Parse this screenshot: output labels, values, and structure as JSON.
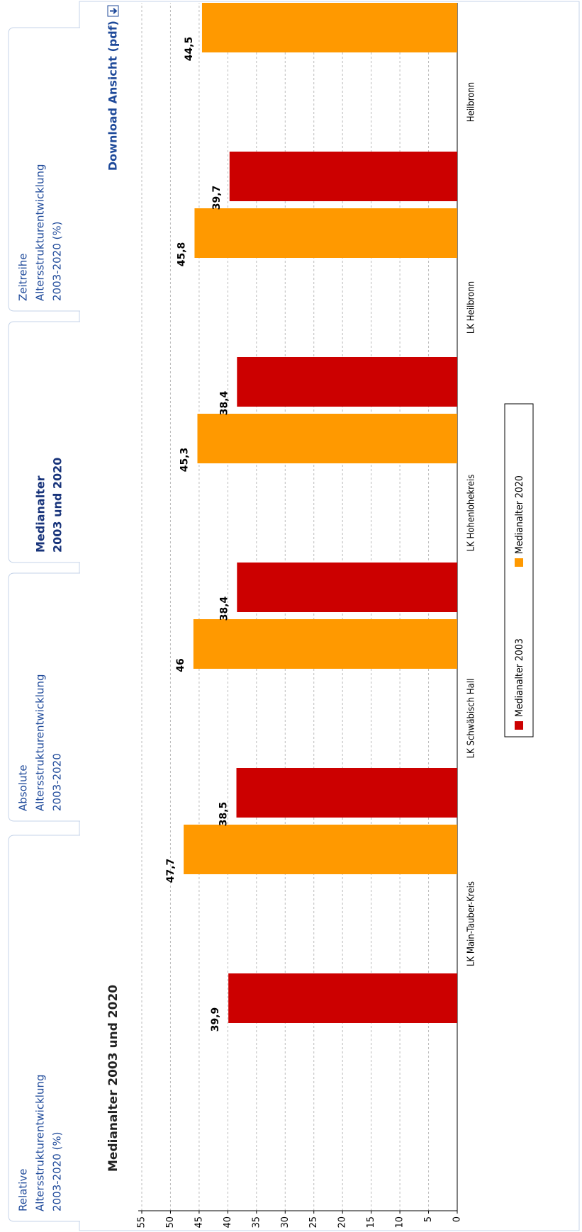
{
  "tabs": [
    [
      "Relative",
      "Altersstrukturentwicklung",
      "2003-2020 (%)"
    ],
    [
      "Absolute",
      "Altersstrukturentwicklung",
      "2003-2020"
    ],
    [
      "Medianalter",
      "2003 und 2020"
    ],
    [
      "Zeitreihe",
      "Altersstrukturentwicklung",
      "2003-2020 (%)"
    ]
  ],
  "download": "Download Ansicht (pdf)",
  "chart_data": {
    "type": "bar",
    "title": "Medianalter 2003 und 2020",
    "categories": [
      "LK Main-Tauber-Kreis",
      "LK Schwäbisch Hall",
      "LK Hohenlohekreis",
      "LK Heilbronn",
      "Heilbronn"
    ],
    "series": [
      {
        "name": "Medianalter 2003",
        "color": "#cc0000",
        "values": [
          39.9,
          38.5,
          38.4,
          38.4,
          39.7
        ],
        "value_labels": [
          "39,9",
          "38,5",
          "38,4",
          "38,4",
          "39,7"
        ]
      },
      {
        "name": "Medianalter 2020",
        "color": "#ff9900",
        "values": [
          47.7,
          46,
          45.3,
          45.8,
          44.5
        ],
        "value_labels": [
          "47,7",
          "46",
          "45,3",
          "45,8",
          "44,5"
        ]
      }
    ],
    "ylim": [
      0,
      55
    ],
    "yticks": [
      0,
      5,
      10,
      15,
      20,
      25,
      30,
      35,
      40,
      45,
      50,
      55
    ],
    "grid": true,
    "legend": "bottom"
  }
}
